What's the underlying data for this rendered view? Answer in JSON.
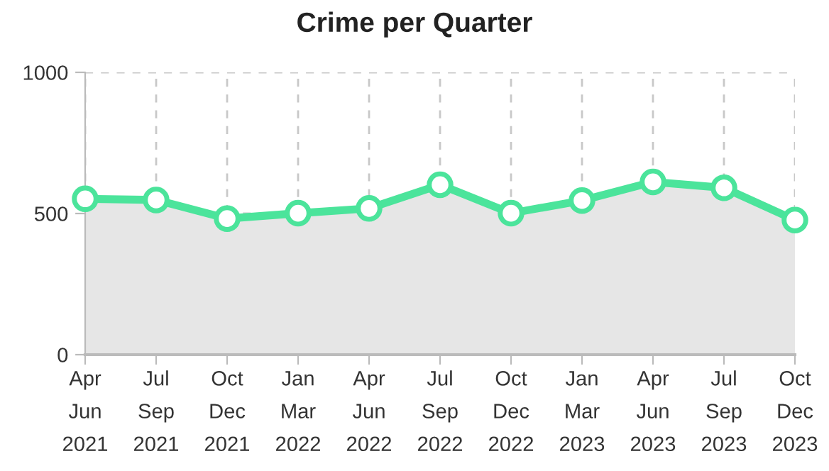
{
  "chart_data": {
    "type": "area",
    "title": "Crime per Quarter",
    "categories": [
      "Apr\nJun\n2021",
      "Jul\nSep\n2021",
      "Oct\nDec\n2021",
      "Jan\nMar\n2022",
      "Apr\nJun\n2022",
      "Jul\nSep\n2022",
      "Oct\nDec\n2022",
      "Jan\nMar\n2023",
      "Apr\nJun\n2023",
      "Jul\nSep\n2023",
      "Oct\nDec\n2023"
    ],
    "series": [
      {
        "color": "#4be49b",
        "values": [
          552,
          548,
          482,
          501,
          518,
          602,
          501,
          546,
          612,
          591,
          477
        ]
      }
    ],
    "ylim": [
      0,
      1000
    ],
    "yticks": [
      0,
      500,
      1000
    ],
    "grid": true,
    "marker": "circle",
    "line_style": "solid"
  }
}
